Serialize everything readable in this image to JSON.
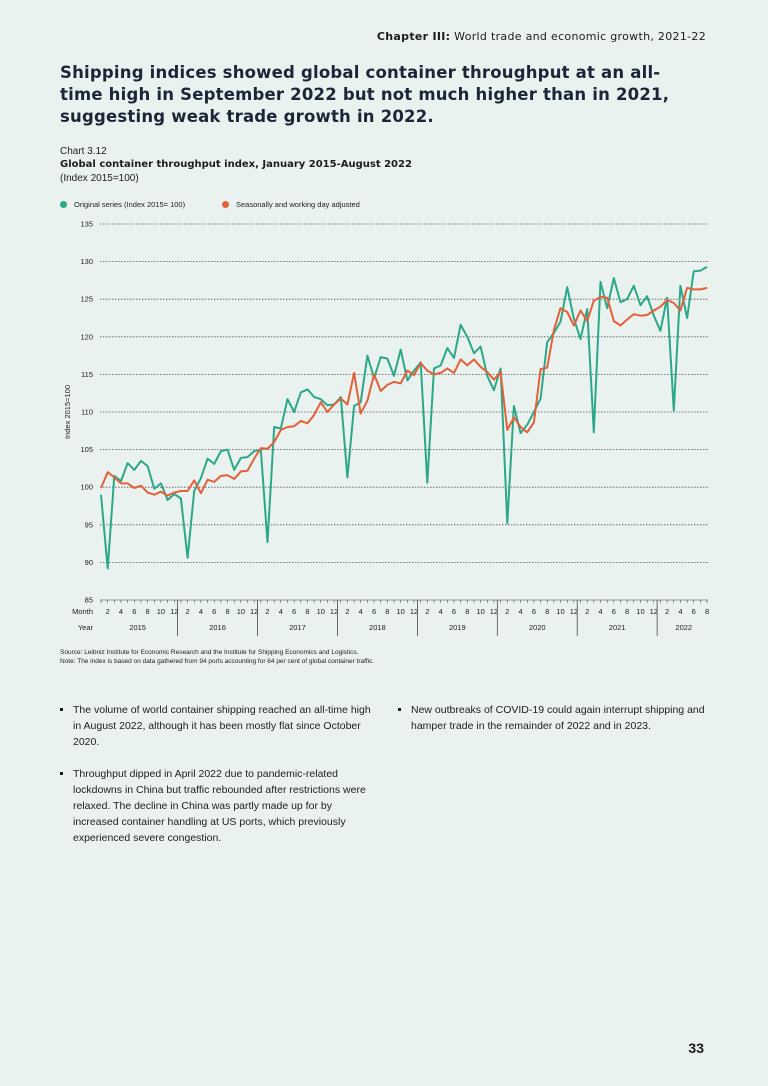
{
  "header": {
    "chapter_label": "Chapter III:",
    "chapter_title": "World trade and economic growth, 2021-22"
  },
  "headline": "Shipping indices showed global container throughput at an all-time high in September 2022 but not much higher than in 2021, suggesting weak trade growth in 2022.",
  "chart_meta": {
    "number": "Chart 3.12"
  },
  "chart_data": {
    "type": "line",
    "title": "Global container throughput index, January 2015-August 2022",
    "subtitle": "(Index 2015=100)",
    "ylabel": "Index 2015=100",
    "ylim": [
      85,
      135
    ],
    "yticks": [
      85,
      90,
      95,
      100,
      105,
      110,
      115,
      120,
      125,
      130,
      135
    ],
    "grid": true,
    "legend_position": "top-left",
    "x_axis": {
      "month_label": "Month",
      "year_label": "Year",
      "month_ticks": [
        "2",
        "4",
        "6",
        "8",
        "10",
        "12"
      ],
      "years": [
        "2015",
        "2016",
        "2017",
        "2018",
        "2019",
        "2020",
        "2021",
        "2022"
      ],
      "start": "2015-01",
      "end": "2022-08"
    },
    "series": [
      {
        "name": "Original series (Index 2015= 100)",
        "color": "#2ba888",
        "values": [
          99,
          89.2,
          101.5,
          100.8,
          103.2,
          102.3,
          103.5,
          102.8,
          99.8,
          100.5,
          98.3,
          99.1,
          98.5,
          90.6,
          99.5,
          101.2,
          103.8,
          103.1,
          104.8,
          105,
          102.3,
          103.9,
          104,
          104.8,
          105,
          92.7,
          108,
          107.8,
          111.7,
          110,
          112.6,
          113,
          112,
          111.7,
          110.9,
          111,
          112,
          101.3,
          110.8,
          111.3,
          117.5,
          114.5,
          117.3,
          117.1,
          114.8,
          118.3,
          114.2,
          115.5,
          116.6,
          100.6,
          115.8,
          116.2,
          118.5,
          117.2,
          121.6,
          120,
          117.8,
          118.7,
          114.8,
          112.9,
          115.8,
          95.2,
          110.8,
          107.2,
          108.3,
          110,
          111.8,
          119.3,
          120.5,
          122,
          126.6,
          122.4,
          119.7,
          123.7,
          107.3,
          127.3,
          123.8,
          127.8,
          124.6,
          125,
          126.8,
          124.2,
          125.4,
          122.8,
          120.8,
          125.2,
          110.2,
          126.8,
          122.5,
          128.7,
          128.8,
          129.3
        ]
      },
      {
        "name": "Seasonally and working day adjusted",
        "color": "#e4603a",
        "values": [
          99.9,
          102,
          101.3,
          100.5,
          100.5,
          99.9,
          100.2,
          99.3,
          99,
          99.4,
          98.9,
          99.3,
          99.5,
          99.5,
          100.9,
          99.2,
          101,
          100.7,
          101.5,
          101.6,
          101.1,
          102.1,
          102.2,
          103.8,
          105.2,
          105.1,
          106,
          107.6,
          108,
          108.1,
          108.8,
          108.5,
          109.6,
          111.3,
          110,
          111,
          111.8,
          111,
          115.2,
          109.8,
          111.5,
          115,
          112.8,
          113.6,
          114,
          113.8,
          115.5,
          114.9,
          116.5,
          115.5,
          115,
          115.2,
          115.8,
          115.2,
          117,
          116.2,
          117,
          116,
          115.3,
          114.3,
          115.3,
          107.6,
          109.3,
          108,
          107.3,
          108.6,
          115.7,
          115.9,
          120.9,
          123.8,
          123.3,
          121.5,
          123.5,
          122.1,
          124.8,
          125.3,
          125.2,
          122.1,
          121.5,
          122.3,
          123,
          122.8,
          122.9,
          123.5,
          124,
          124.9,
          124.5,
          123.5,
          126.5,
          126.3,
          126.3,
          126.5
        ]
      }
    ]
  },
  "source": "Source: Leibniz Institute for Economic Research and the Institute for Shipping Economics and Logistics.",
  "note": "Note: The index is based on data gathered from 94 ports accounting for 64 per cent of global container traffic.",
  "bullets_left": [
    "The volume of world container shipping reached an all-time high in August 2022, although it has been mostly flat since October 2020.",
    "Throughput dipped in April 2022 due to pandemic-related lockdowns in China but traffic rebounded after restrictions were relaxed. The decline in China was partly made up for by increased container handling at US ports, which previously experienced severe congestion."
  ],
  "bullets_right": [
    "New outbreaks of COVID-19 could again interrupt shipping and hamper trade in the remainder of 2022 and in 2023."
  ],
  "page_number": "33"
}
